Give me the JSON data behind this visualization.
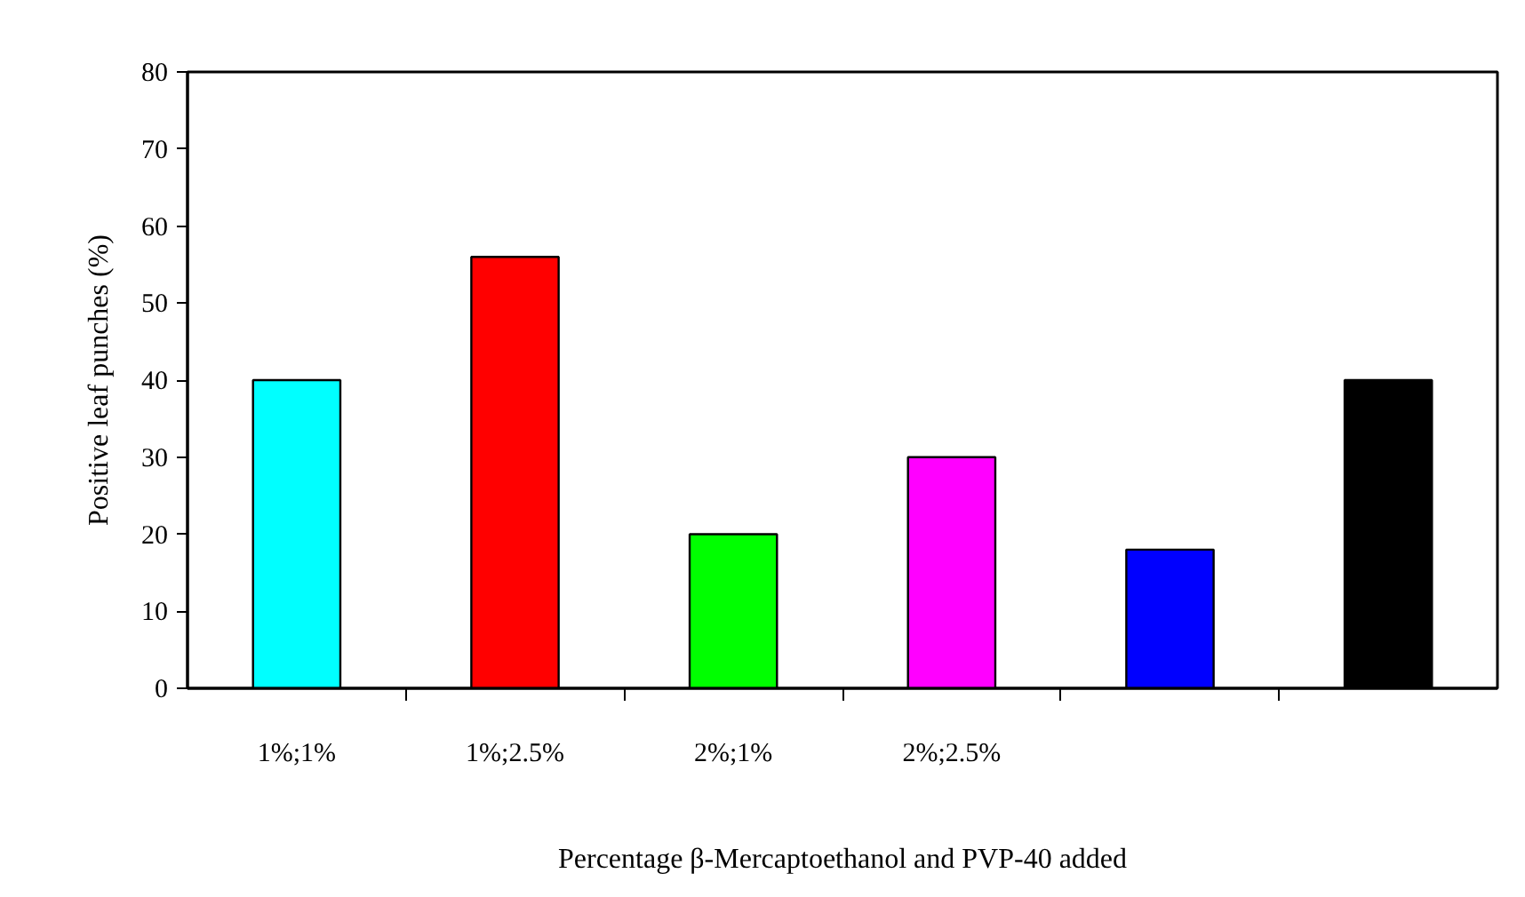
{
  "chart_data": {
    "type": "bar",
    "xlabel": "Percentage β-Mercaptoethanol and PVP-40 added",
    "ylabel": "Positive leaf punches (%)",
    "categories": [
      "1%;1%",
      "1%;2.5%",
      "2%;1%",
      "2%;2.5%",
      null,
      null
    ],
    "values": [
      40,
      56,
      20,
      30,
      18,
      40
    ],
    "colors": [
      "#00ffff",
      "#ff0000",
      "#00ff00",
      "#ff00ff",
      "#0000ff",
      "#000000"
    ],
    "ylim": [
      0,
      80
    ],
    "yticks": [
      0,
      10,
      20,
      30,
      40,
      50,
      60,
      70,
      80
    ],
    "grid": false
  }
}
